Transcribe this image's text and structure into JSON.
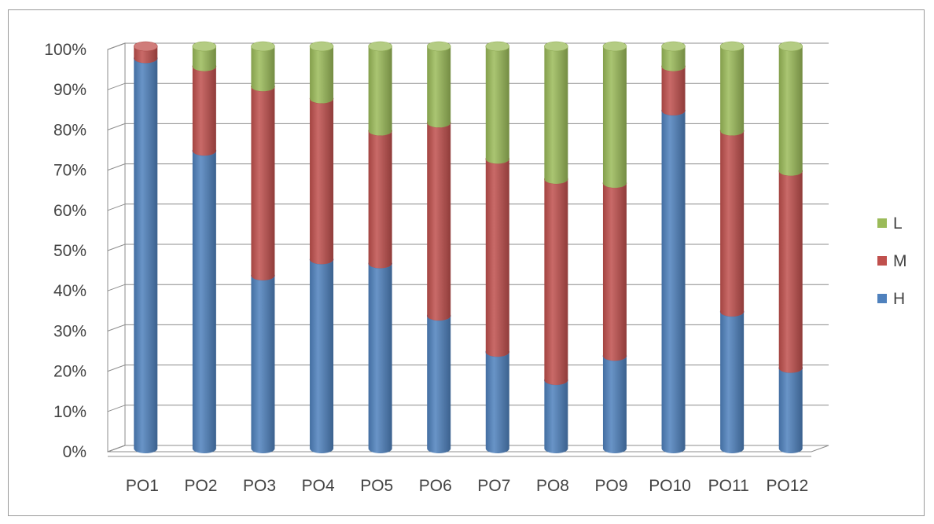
{
  "chart_data": {
    "type": "bar",
    "stacked": true,
    "percent_stacked": true,
    "style": "3d-cylinder",
    "categories": [
      "PO1",
      "PO2",
      "PO3",
      "PO4",
      "PO5",
      "PO6",
      "PO7",
      "PO8",
      "PO9",
      "PO10",
      "PO11",
      "PO12"
    ],
    "series": [
      {
        "name": "H",
        "color": "#4f81bd",
        "values": [
          97,
          74,
          43,
          47,
          46,
          33,
          24,
          17,
          23,
          84,
          34,
          20
        ]
      },
      {
        "name": "M",
        "color": "#c0504d",
        "values": [
          3,
          21,
          47,
          40,
          33,
          48,
          48,
          50,
          43,
          11,
          45,
          49
        ]
      },
      {
        "name": "L",
        "color": "#9bbb59",
        "values": [
          0,
          5,
          10,
          13,
          21,
          19,
          28,
          33,
          34,
          5,
          21,
          31
        ]
      }
    ],
    "y_ticks": [
      "0%",
      "10%",
      "20%",
      "30%",
      "40%",
      "50%",
      "60%",
      "70%",
      "80%",
      "90%",
      "100%"
    ],
    "ylim": [
      0,
      100
    ],
    "grid": true,
    "legend_position": "right",
    "legend_order": [
      "L",
      "M",
      "H"
    ]
  }
}
